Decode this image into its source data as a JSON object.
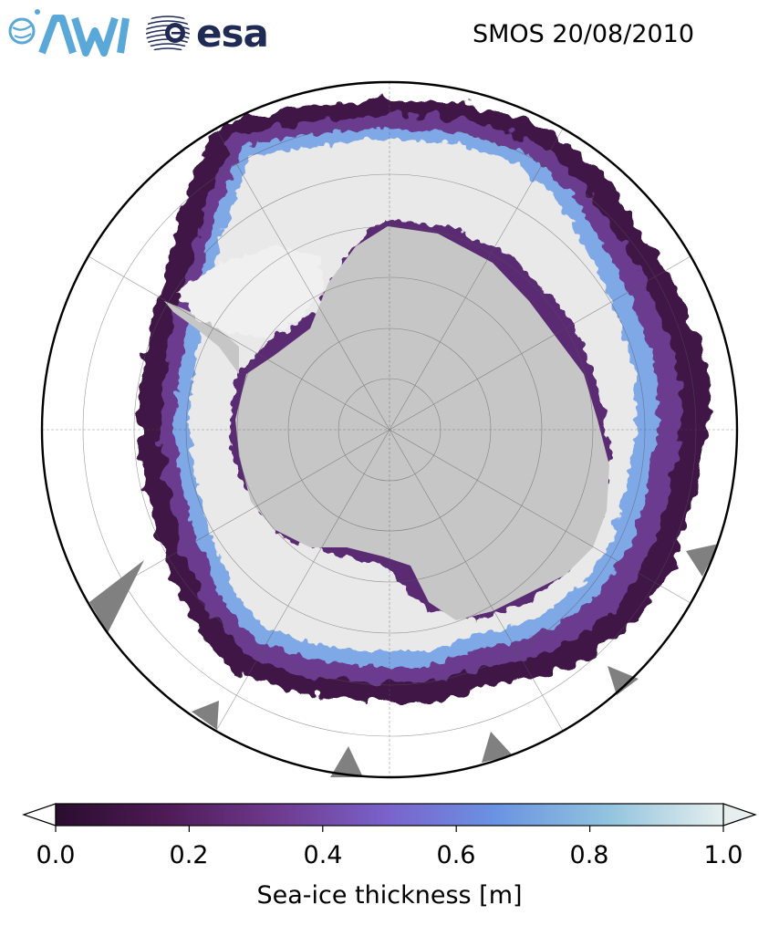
{
  "header": {
    "logos": [
      {
        "name": "AWI",
        "icon": "awi-logo"
      },
      {
        "name": "esa",
        "icon": "esa-logo",
        "text": "esa"
      }
    ],
    "title": "SMOS 20/08/2010"
  },
  "map": {
    "projection": "south-polar-stereographic",
    "region": "Antarctica",
    "land_color": "#c6c6c6",
    "thick_ice_color": "#e9e9e9",
    "ocean_color": "#ffffff",
    "graticule": true,
    "parallels": 8,
    "meridians": 12
  },
  "colorbar": {
    "label": "Sea-ice thickness [m]",
    "min": 0.0,
    "max": 1.0,
    "extend": "both",
    "ticks": [
      "0.0",
      "0.2",
      "0.4",
      "0.6",
      "0.8",
      "1.0"
    ],
    "colormap": [
      "#2a0d2e",
      "#4d1a55",
      "#6e3a8e",
      "#7a63cc",
      "#6a93e2",
      "#93c4de",
      "#e6efee"
    ]
  }
}
